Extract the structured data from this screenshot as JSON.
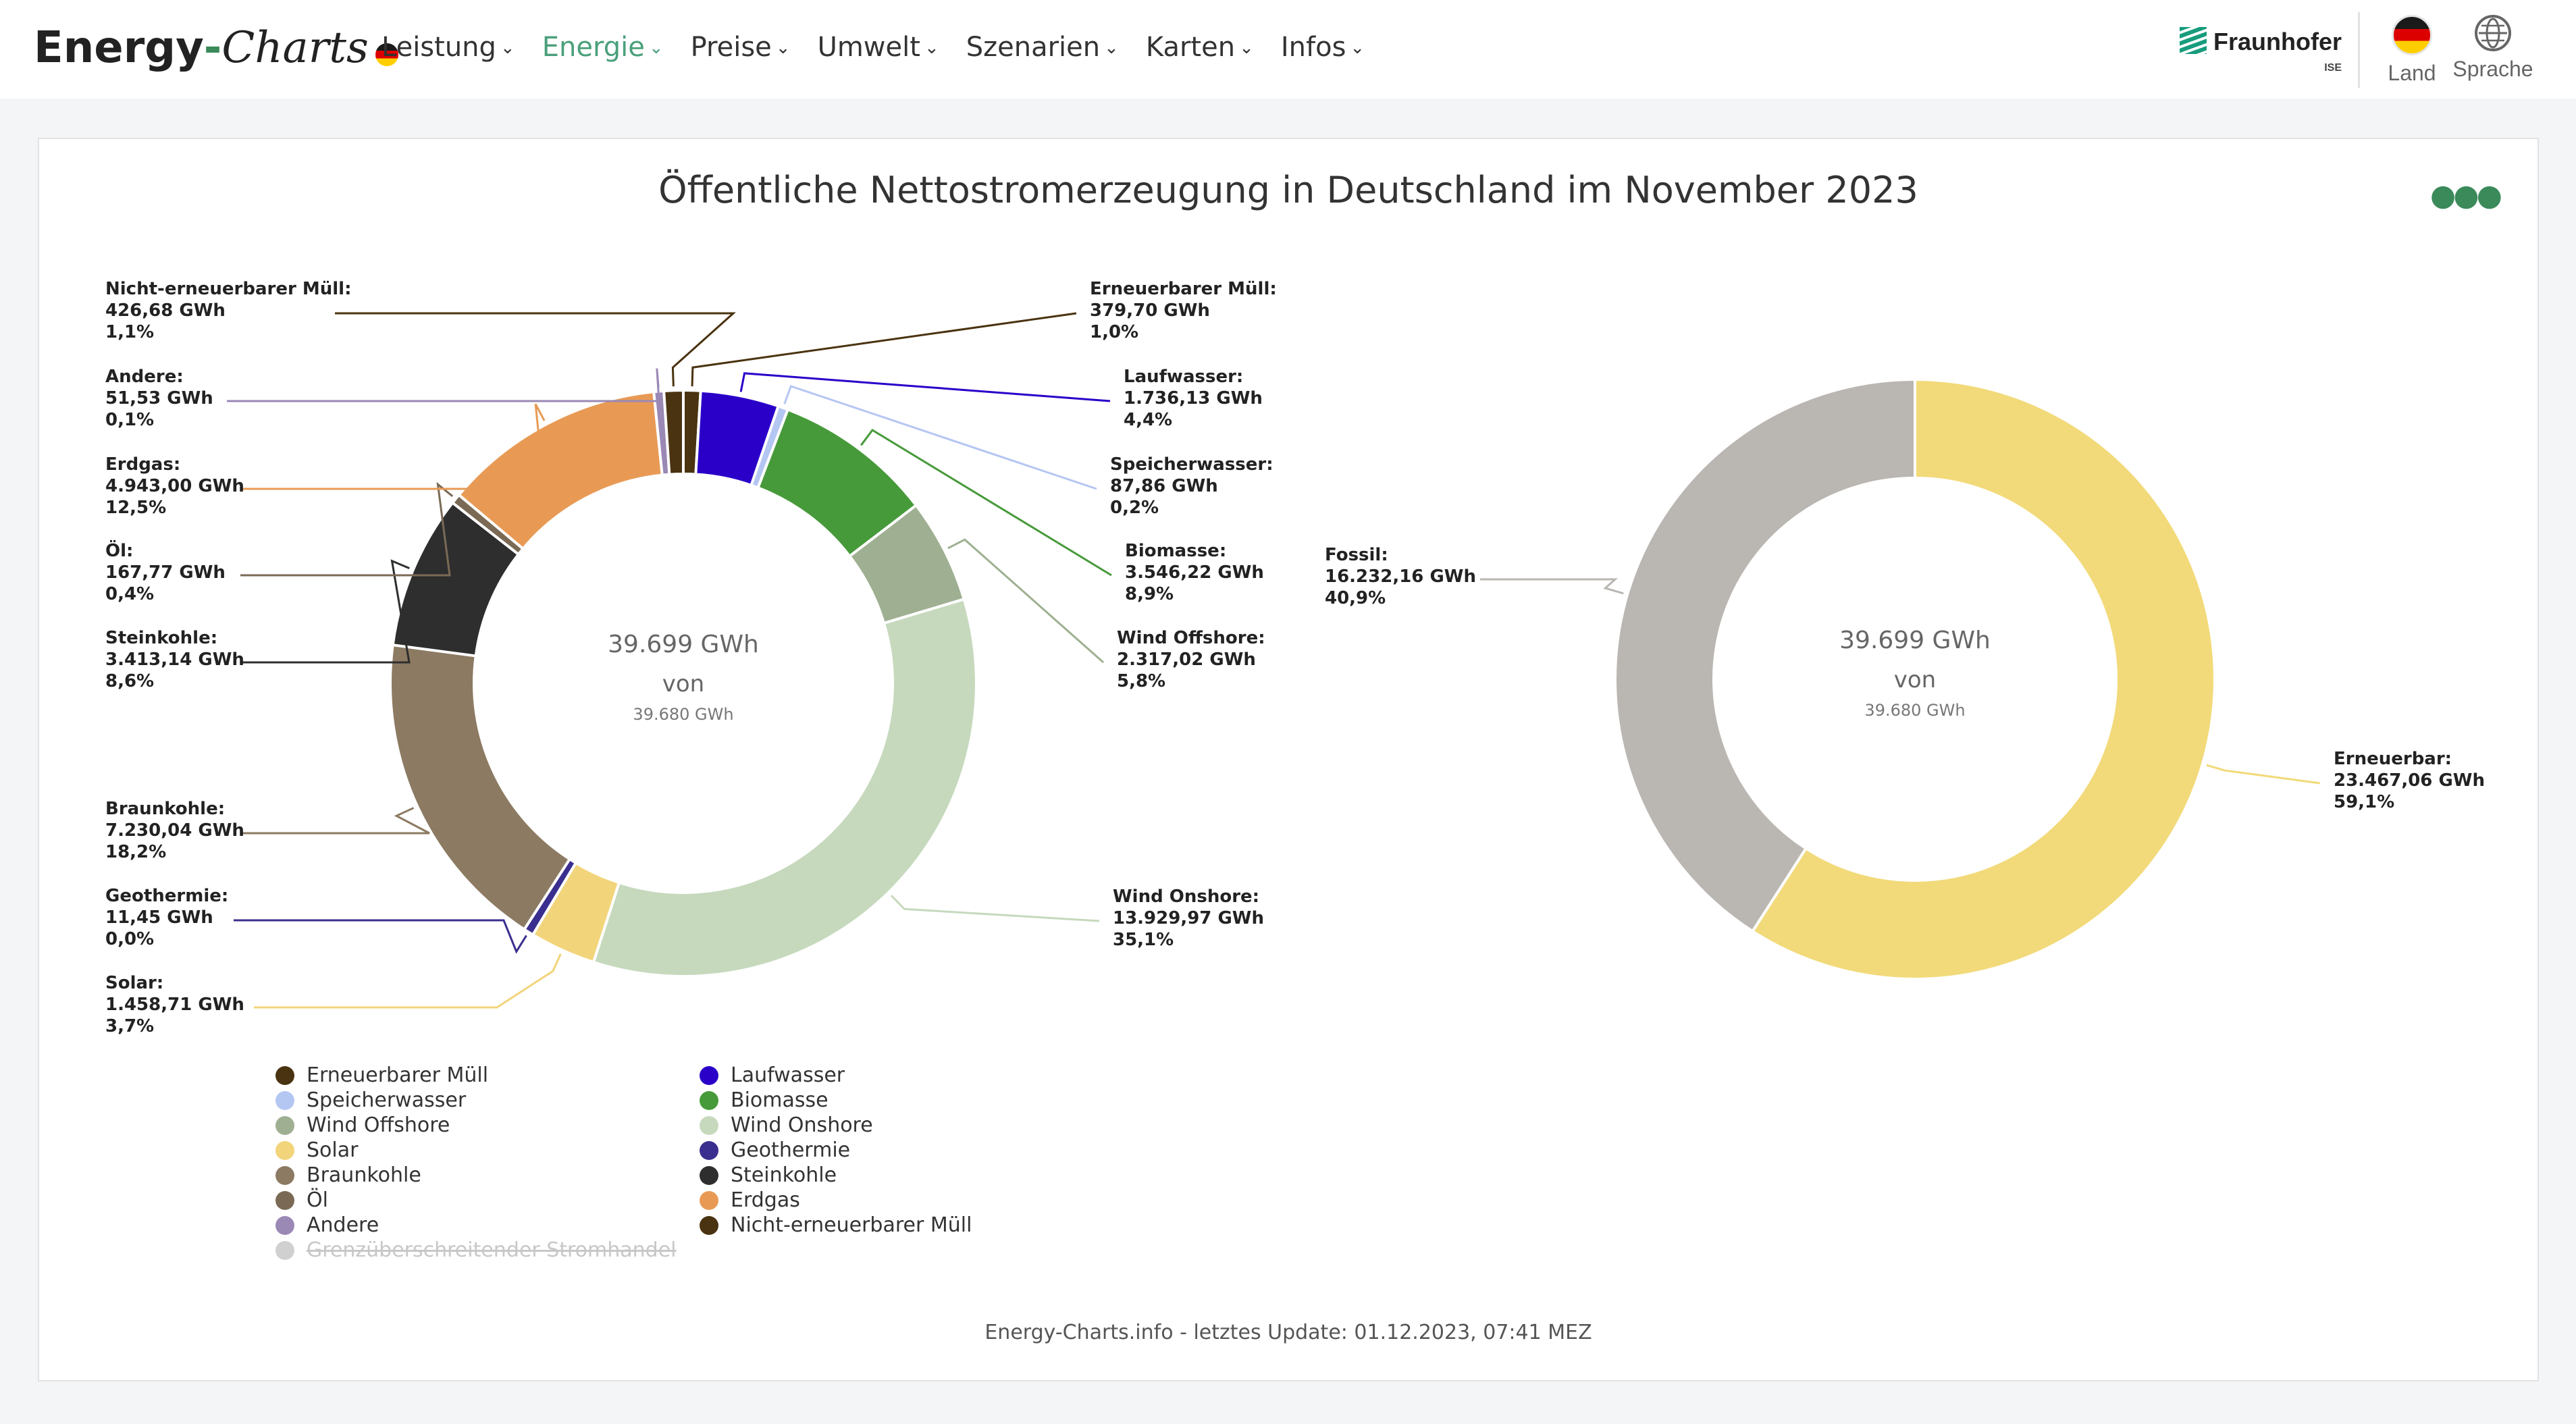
{
  "header": {
    "logo_part1": "Energy",
    "logo_part2": "-",
    "logo_part3": "Charts",
    "nav": [
      {
        "label": "Leistung",
        "active": false
      },
      {
        "label": "Energie",
        "active": true
      },
      {
        "label": "Preise",
        "active": false
      },
      {
        "label": "Umwelt",
        "active": false
      },
      {
        "label": "Szenarien",
        "active": false
      },
      {
        "label": "Karten",
        "active": false
      },
      {
        "label": "Infos",
        "active": false
      }
    ],
    "partner_logo": "Fraunhofer",
    "partner_sub": "ISE",
    "land_label": "Land",
    "language_label": "Sprache"
  },
  "footer": "Energy-Charts.info - letztes Update: 01.12.2023, 07:41 MEZ",
  "chart_data": [
    {
      "type": "pie",
      "variant": "donut",
      "title": "Öffentliche Nettostromerzeugung in Deutschland im November 2023",
      "center_value": "39.699 GWh",
      "center_label": "von",
      "center_total": "39.680 GWh",
      "slices": [
        {
          "name": "Erneuerbarer Müll",
          "value": "379,70 GWh",
          "percent": "1,0%",
          "v": 379.7,
          "color": "#4a3310"
        },
        {
          "name": "Laufwasser",
          "value": "1.736,13 GWh",
          "percent": "4,4%",
          "v": 1736.13,
          "color": "#2a00c9"
        },
        {
          "name": "Speicherwasser",
          "value": "87,86 GWh",
          "percent": "0,2%",
          "v": 87.86,
          "color": "#b4c6f2"
        },
        {
          "name": "Biomasse",
          "value": "3.546,22 GWh",
          "percent": "8,9%",
          "v": 3546.22,
          "color": "#479a3a"
        },
        {
          "name": "Wind Offshore",
          "value": "2.317,02 GWh",
          "percent": "5,8%",
          "v": 2317.02,
          "color": "#9fb092"
        },
        {
          "name": "Wind Onshore",
          "value": "13.929,97 GWh",
          "percent": "35,1%",
          "v": 13929.97,
          "color": "#c6d9bd"
        },
        {
          "name": "Solar",
          "value": "1.458,71 GWh",
          "percent": "3,7%",
          "v": 1458.71,
          "color": "#f2d47a"
        },
        {
          "name": "Geothermie",
          "value": "11,45 GWh",
          "percent": "0,0%",
          "v": 11.45,
          "color": "#3a2f8e"
        },
        {
          "name": "Braunkohle",
          "value": "7.230,04 GWh",
          "percent": "18,2%",
          "v": 7230.04,
          "color": "#8c7a62"
        },
        {
          "name": "Steinkohle",
          "value": "3.413,14 GWh",
          "percent": "8,6%",
          "v": 3413.14,
          "color": "#2e2e2e"
        },
        {
          "name": "Öl",
          "value": "167,77 GWh",
          "percent": "0,4%",
          "v": 167.77,
          "color": "#7a6a55"
        },
        {
          "name": "Erdgas",
          "value": "4.943,00 GWh",
          "percent": "12,5%",
          "v": 4943.0,
          "color": "#e89a55"
        },
        {
          "name": "Andere",
          "value": "51,53 GWh",
          "percent": "0,1%",
          "v": 51.53,
          "color": "#9a88b5"
        },
        {
          "name": "Nicht-erneuerbarer Müll",
          "value": "426,68 GWh",
          "percent": "1,1%",
          "v": 426.68,
          "color": "#4a3310"
        }
      ],
      "legend": [
        {
          "name": "Erneuerbarer Müll",
          "color": "#4a3310"
        },
        {
          "name": "Laufwasser",
          "color": "#2a00c9"
        },
        {
          "name": "Speicherwasser",
          "color": "#b4c6f2"
        },
        {
          "name": "Biomasse",
          "color": "#479a3a"
        },
        {
          "name": "Wind Offshore",
          "color": "#9fb092"
        },
        {
          "name": "Wind Onshore",
          "color": "#c6d9bd"
        },
        {
          "name": "Solar",
          "color": "#f2d47a"
        },
        {
          "name": "Geothermie",
          "color": "#3a2f8e"
        },
        {
          "name": "Braunkohle",
          "color": "#8c7a62"
        },
        {
          "name": "Steinkohle",
          "color": "#2e2e2e"
        },
        {
          "name": "Öl",
          "color": "#7a6a55"
        },
        {
          "name": "Erdgas",
          "color": "#e89a55"
        },
        {
          "name": "Andere",
          "color": "#9a88b5"
        },
        {
          "name": "Nicht-erneuerbarer Müll",
          "color": "#4a3310"
        },
        {
          "name": "Grenzüberschreitender Stromhandel",
          "color": "#d0d0d0",
          "disabled": true
        }
      ]
    },
    {
      "type": "pie",
      "variant": "donut",
      "center_value": "39.699 GWh",
      "center_label": "von",
      "center_total": "39.680 GWh",
      "slices": [
        {
          "name": "Erneuerbar",
          "value": "23.467,06 GWh",
          "percent": "59,1%",
          "v": 23467.06,
          "color": "#f2da7a"
        },
        {
          "name": "Fossil",
          "value": "16.232,16 GWh",
          "percent": "40,9%",
          "v": 16232.16,
          "color": "#bab6b2"
        }
      ]
    }
  ]
}
